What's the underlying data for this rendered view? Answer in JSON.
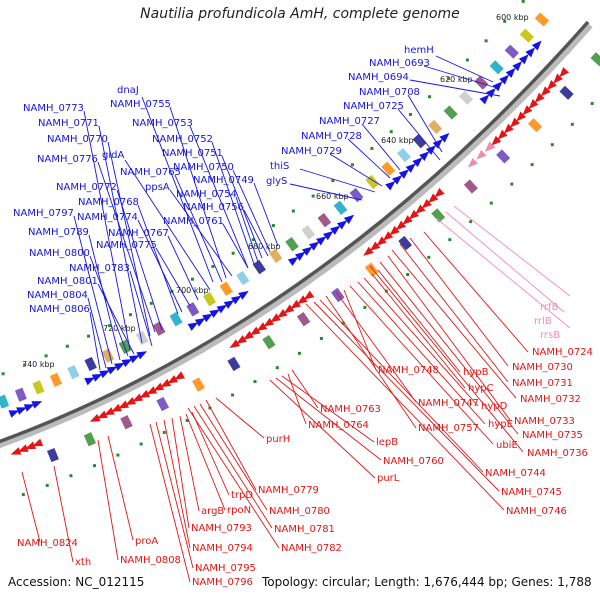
{
  "title": "Nautilia profundicola AmH, complete genome",
  "footer": {
    "accession": "Accession: NC_012115",
    "topology": "Topology: circular; Length: 1,676,444 bp; Genes: 1,788"
  },
  "colors": {
    "forward": "#1414e6",
    "reverse": "#e61414",
    "rna": "#f08cb4",
    "backbone": "#888888",
    "gc": "#2a8a2a"
  },
  "ticks": [
    "600 kbp",
    "620 kbp",
    "640 kbp",
    "660 kbp",
    "680 kbp",
    "700 kbp",
    "720 kbp",
    "740 kbp"
  ],
  "forward_genes": [
    "hemH",
    "NAMH_0693",
    "NAMH_0694",
    "NAMH_0708",
    "NAMH_0725",
    "NAMH_0727",
    "NAMH_0728",
    "NAMH_0729",
    "thiS",
    "glyS",
    "dnaJ",
    "NAMH_0755",
    "NAMH_0773",
    "NAMH_0753",
    "NAMH_0771",
    "NAMH_0752",
    "NAMH_0770",
    "NAMH_0751",
    "NAMH_0776",
    "gidA",
    "NAMH_0750",
    "NAMH_0765",
    "NAMH_0749",
    "NAMH_0772",
    "ppsA",
    "NAMH_0754",
    "NAMH_0768",
    "NAMH_0756",
    "NAMH_0797",
    "NAMH_0774",
    "NAMH_0761",
    "NAMH_0789",
    "NAMH_0767",
    "NAMH_0775",
    "NAMH_0800",
    "NAMH_0783",
    "NAMH_0801",
    "NAMH_0804",
    "NAMH_0806"
  ],
  "rna_genes": [
    "rrsB",
    "rrlB",
    "rrfB"
  ],
  "reverse_genes": [
    "NAMH_0724",
    "NAMH_0730",
    "NAMH_0731",
    "NAMH_0732",
    "NAMH_0733",
    "NAMH_0735",
    "NAMH_0736",
    "hypB",
    "hypC",
    "hypD",
    "hypE",
    "ubiE",
    "NAMH_0748",
    "NAMH_0747",
    "NAMH_0757",
    "NAMH_0744",
    "NAMH_0745",
    "NAMH_0746",
    "NAMH_0763",
    "NAMH_0764",
    "lepB",
    "NAMH_0760",
    "purL",
    "purH",
    "NAMH_0779",
    "NAMH_0780",
    "NAMH_0781",
    "NAMH_0782",
    "trpD",
    "rpoN",
    "argB",
    "NAMH_0793",
    "NAMH_0794",
    "NAMH_0795",
    "NAMH_0796",
    "proA",
    "NAMH_0808",
    "NAMH_0824",
    "xth"
  ]
}
